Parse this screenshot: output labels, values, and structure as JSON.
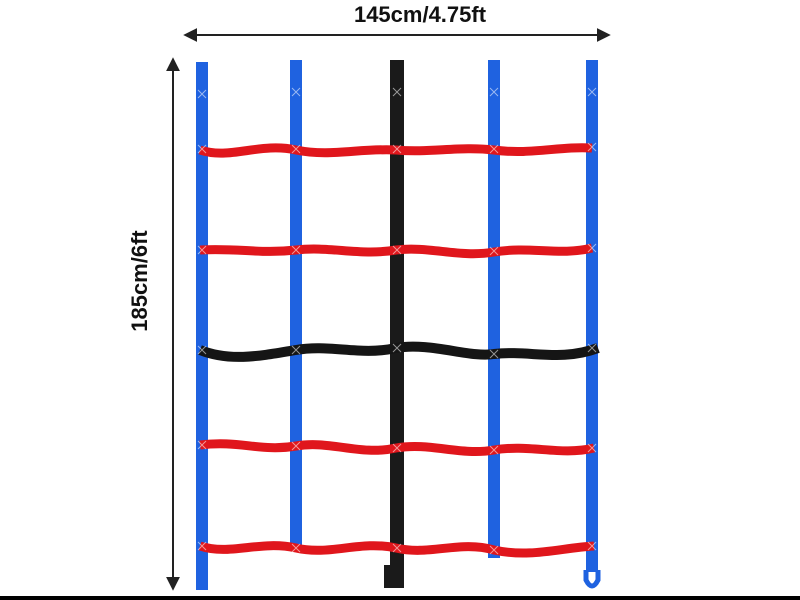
{
  "dimensions": {
    "width_label": "145cm/4.75ft",
    "height_label": "185cm/6ft"
  },
  "net": {
    "vertical_straps": 5,
    "horizontal_rungs": 5,
    "colors": {
      "side_strap": "#1f62e0",
      "center_strap": "#1a1a1a",
      "rung": "#e0161c",
      "center_rung": "#151515"
    }
  }
}
